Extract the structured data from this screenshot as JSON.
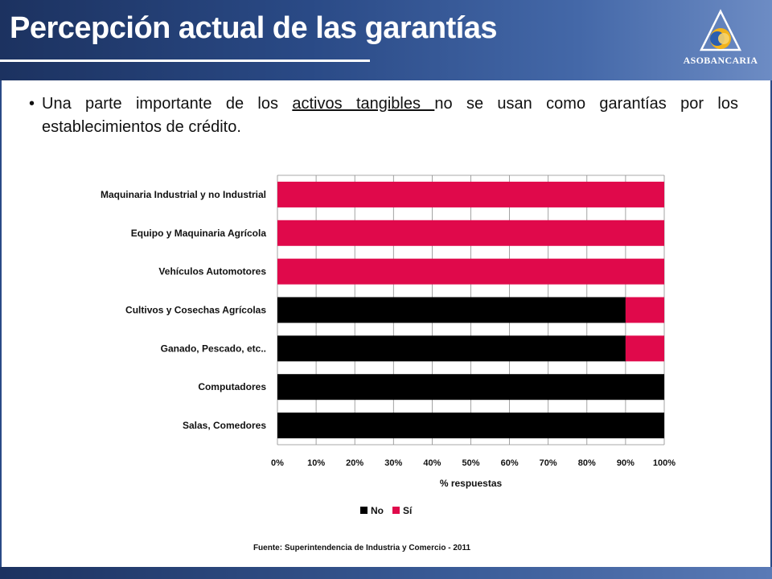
{
  "slide": {
    "title": "Percepción actual de las garantías",
    "logo_text": "ASOBANCARIA",
    "bullet_prefix": "Una parte importante de los ",
    "bullet_underlined": "activos tangibles ",
    "bullet_suffix": "no se usan como garantías por los establecimientos de crédito.",
    "source": "Fuente: Superintendencia de Industria y Comercio - 2011"
  },
  "colors": {
    "header_dark": "#1c3260",
    "no": "#000000",
    "si": "#e0094b",
    "grid": "#8c8c8c"
  },
  "chart_data": {
    "type": "bar",
    "orientation": "horizontal",
    "stacked": true,
    "categories": [
      "Maquinaria Industrial y no Industrial",
      "Equipo y Maquinaria Agrícola",
      "Vehículos Automotores",
      "Cultivos y Cosechas Agrícolas",
      "Ganado, Pescado, etc..",
      "Computadores",
      "Salas, Comedores"
    ],
    "series": [
      {
        "name": "No",
        "values": [
          0,
          0,
          0,
          90,
          90,
          100,
          100
        ],
        "color": "#000000"
      },
      {
        "name": "Sí",
        "values": [
          100,
          100,
          100,
          10,
          10,
          0,
          0
        ],
        "color": "#e0094b"
      }
    ],
    "xlabel": "% respuestas",
    "ylabel": "",
    "xlim": [
      0,
      100
    ],
    "x_ticks": [
      "0%",
      "10%",
      "20%",
      "30%",
      "40%",
      "50%",
      "60%",
      "70%",
      "80%",
      "90%",
      "100%"
    ],
    "grid": true,
    "legend_position": "bottom"
  }
}
